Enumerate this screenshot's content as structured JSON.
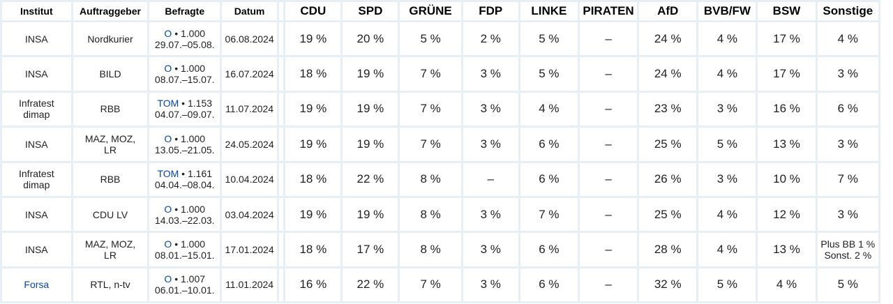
{
  "table": {
    "headers": {
      "institut": "Institut",
      "auftraggeber": "Auftraggeber",
      "befragte": "Befragte",
      "datum": "Datum",
      "parties": [
        "CDU",
        "SPD",
        "GRÜNE",
        "FDP",
        "LINKE",
        "PIRATEN",
        "AfD",
        "BVB/FW",
        "BSW",
        "Sonstige"
      ]
    },
    "rows": [
      {
        "institut": [
          "INSA"
        ],
        "institut_link": false,
        "auftraggeber": [
          "Nordkurier"
        ],
        "method": "O",
        "size": " • 1.000",
        "range": "29.07.–05.08.",
        "datum": "06.08.2024",
        "values": [
          "19 %",
          "20 %",
          "5 %",
          "2 %",
          "5 %",
          "–",
          "24 %",
          "4 %",
          "17 %"
        ],
        "sonstige": [
          "4 %"
        ]
      },
      {
        "institut": [
          "INSA"
        ],
        "institut_link": false,
        "auftraggeber": [
          "BILD"
        ],
        "method": "O",
        "size": " • 1.000",
        "range": "08.07.–15.07.",
        "datum": "16.07.2024",
        "values": [
          "18 %",
          "19 %",
          "7 %",
          "3 %",
          "5 %",
          "–",
          "24 %",
          "4 %",
          "17 %"
        ],
        "sonstige": [
          "3 %"
        ]
      },
      {
        "institut": [
          "Infratest",
          "dimap"
        ],
        "institut_link": false,
        "auftraggeber": [
          "RBB"
        ],
        "method": "TOM",
        "size": " • 1.153",
        "range": "04.07.–09.07.",
        "datum": "11.07.2024",
        "values": [
          "19 %",
          "19 %",
          "7 %",
          "3 %",
          "4 %",
          "–",
          "23 %",
          "3 %",
          "16 %"
        ],
        "sonstige": [
          "6 %"
        ]
      },
      {
        "institut": [
          "INSA"
        ],
        "institut_link": false,
        "auftraggeber": [
          "MAZ, MOZ,",
          "LR"
        ],
        "method": "O",
        "size": " • 1.000",
        "range": "13.05.–21.05.",
        "datum": "24.05.2024",
        "values": [
          "19 %",
          "19 %",
          "7 %",
          "3 %",
          "6 %",
          "–",
          "25 %",
          "5 %",
          "13 %"
        ],
        "sonstige": [
          "3 %"
        ]
      },
      {
        "institut": [
          "Infratest",
          "dimap"
        ],
        "institut_link": false,
        "auftraggeber": [
          "RBB"
        ],
        "method": "TOM",
        "size": " • 1.161",
        "range": "04.04.–08.04.",
        "datum": "10.04.2024",
        "values": [
          "18 %",
          "22 %",
          "8 %",
          "–",
          "6 %",
          "–",
          "26 %",
          "3 %",
          "10 %"
        ],
        "sonstige": [
          "7 %"
        ]
      },
      {
        "institut": [
          "INSA"
        ],
        "institut_link": false,
        "auftraggeber": [
          "CDU LV"
        ],
        "method": "O",
        "size": " • 1.000",
        "range": "14.03.–22.03.",
        "datum": "03.04.2024",
        "values": [
          "19 %",
          "19 %",
          "8 %",
          "3 %",
          "7 %",
          "–",
          "25 %",
          "4 %",
          "12 %"
        ],
        "sonstige": [
          "3 %"
        ]
      },
      {
        "institut": [
          "INSA"
        ],
        "institut_link": false,
        "auftraggeber": [
          "MAZ, MOZ,",
          "LR"
        ],
        "method": "O",
        "size": " • 1.000",
        "range": "08.01.–15.01.",
        "datum": "17.01.2024",
        "values": [
          "18 %",
          "17 %",
          "8 %",
          "3 %",
          "6 %",
          "–",
          "28 %",
          "4 %",
          "13 %"
        ],
        "sonstige": [
          "Plus BB 1 %",
          "Sonst. 2 %"
        ]
      },
      {
        "institut": [
          "Forsa"
        ],
        "institut_link": true,
        "auftraggeber": [
          "RTL, n-tv"
        ],
        "method": "O",
        "size": " • 1.007",
        "range": "06.01.–10.01.",
        "datum": "11.01.2024",
        "values": [
          "16 %",
          "22 %",
          "7 %",
          "3 %",
          "6 %",
          "–",
          "32 %",
          "5 %",
          "4 %"
        ],
        "sonstige": [
          "5 %"
        ]
      }
    ]
  },
  "colors": {
    "grid": "#e6eef6",
    "link": "#0645ad",
    "text": "#202122"
  }
}
